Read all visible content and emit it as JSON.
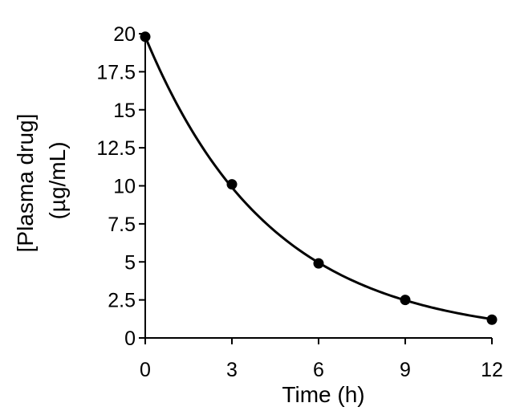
{
  "chart_data": {
    "type": "scatter",
    "title": "",
    "xlabel": "Time (h)",
    "ylabel_lines": [
      "[Plasma drug]",
      "(µg/mL)"
    ],
    "x_ticks": [
      "0",
      "3",
      "6",
      "9",
      "12"
    ],
    "y_ticks": [
      "0",
      "2.5",
      "5",
      "7.5",
      "10",
      "12.5",
      "15",
      "17.5",
      "20"
    ],
    "xlim": [
      0,
      12
    ],
    "ylim": [
      0,
      20
    ],
    "grid": false,
    "series": [
      {
        "x": [
          0,
          3,
          6,
          9,
          12
        ],
        "y": [
          19.8,
          10.1,
          4.9,
          2.5,
          1.2
        ],
        "markers": true
      }
    ],
    "fit_curve": {
      "type": "exponential_decay",
      "initial": 19.8,
      "half_life_h": 3
    }
  }
}
